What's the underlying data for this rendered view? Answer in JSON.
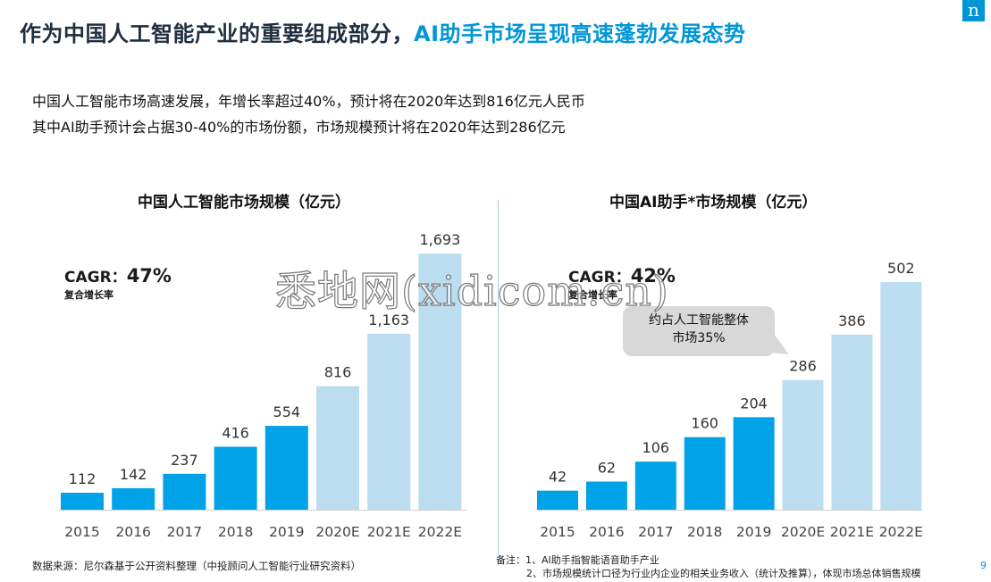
{
  "header": {
    "title_part1": "作为中国人工智能产业的重要组成部分，",
    "title_part2": "AI助手市场呈现高速蓬勃发展态势",
    "logo_letter": "n"
  },
  "intro": {
    "line1": "中国人工智能市场高速发展，年增长率超过40%，预计将在2020年达到816亿元人民币",
    "line2": "其中AI助手预计会占据30-40%的市场份额，市场规模预计将在2020年达到286亿元"
  },
  "left_panel": {
    "cagr_label": "CAGR：",
    "cagr_value": "47%",
    "cagr_sub": "复合增长率"
  },
  "right_panel": {
    "cagr_label": "CAGR：",
    "cagr_value": "42%",
    "cagr_sub": "复合增长率",
    "callout_line1": "约占人工智能整体",
    "callout_line2": "市场35%"
  },
  "watermark": "悉地网(xidicom.cn)",
  "footer": {
    "source": "数据来源：尼尔森基于公开资料整理（中投顾问人工智能行业研究资料）",
    "note1": "备注：1、AI助手指智能语音助手产业",
    "note2": "2、市场规模统计口径为行业内企业的相关业务收入（统计及推算），体现市场总体销售规模",
    "page_number": "9"
  },
  "colors": {
    "actual": "#00a3e8",
    "estimate": "#bcdcf0",
    "accent": "#0096d6"
  },
  "chart_data": [
    {
      "type": "bar",
      "title": "中国人工智能市场规模（亿元）",
      "categories": [
        "2015",
        "2016",
        "2017",
        "2018",
        "2019",
        "2020E",
        "2021E",
        "2022E"
      ],
      "values": [
        112,
        142,
        237,
        416,
        554,
        816,
        1163,
        1693
      ],
      "value_labels": [
        "112",
        "142",
        "237",
        "416",
        "554",
        "816",
        "1,163",
        "1,693"
      ],
      "estimated": [
        false,
        false,
        false,
        false,
        false,
        true,
        true,
        true
      ],
      "ylim": [
        0,
        1693
      ],
      "grid": false,
      "legend": "none"
    },
    {
      "type": "bar",
      "title": "中国AI助手*市场规模（亿元）",
      "categories": [
        "2015",
        "2016",
        "2017",
        "2018",
        "2019",
        "2020E",
        "2021E",
        "2022E"
      ],
      "values": [
        42,
        62,
        106,
        160,
        204,
        286,
        386,
        502
      ],
      "value_labels": [
        "42",
        "62",
        "106",
        "160",
        "204",
        "286",
        "386",
        "502"
      ],
      "estimated": [
        false,
        false,
        false,
        false,
        false,
        true,
        true,
        true
      ],
      "ylim": [
        0,
        502
      ],
      "grid": false,
      "legend": "none"
    }
  ]
}
